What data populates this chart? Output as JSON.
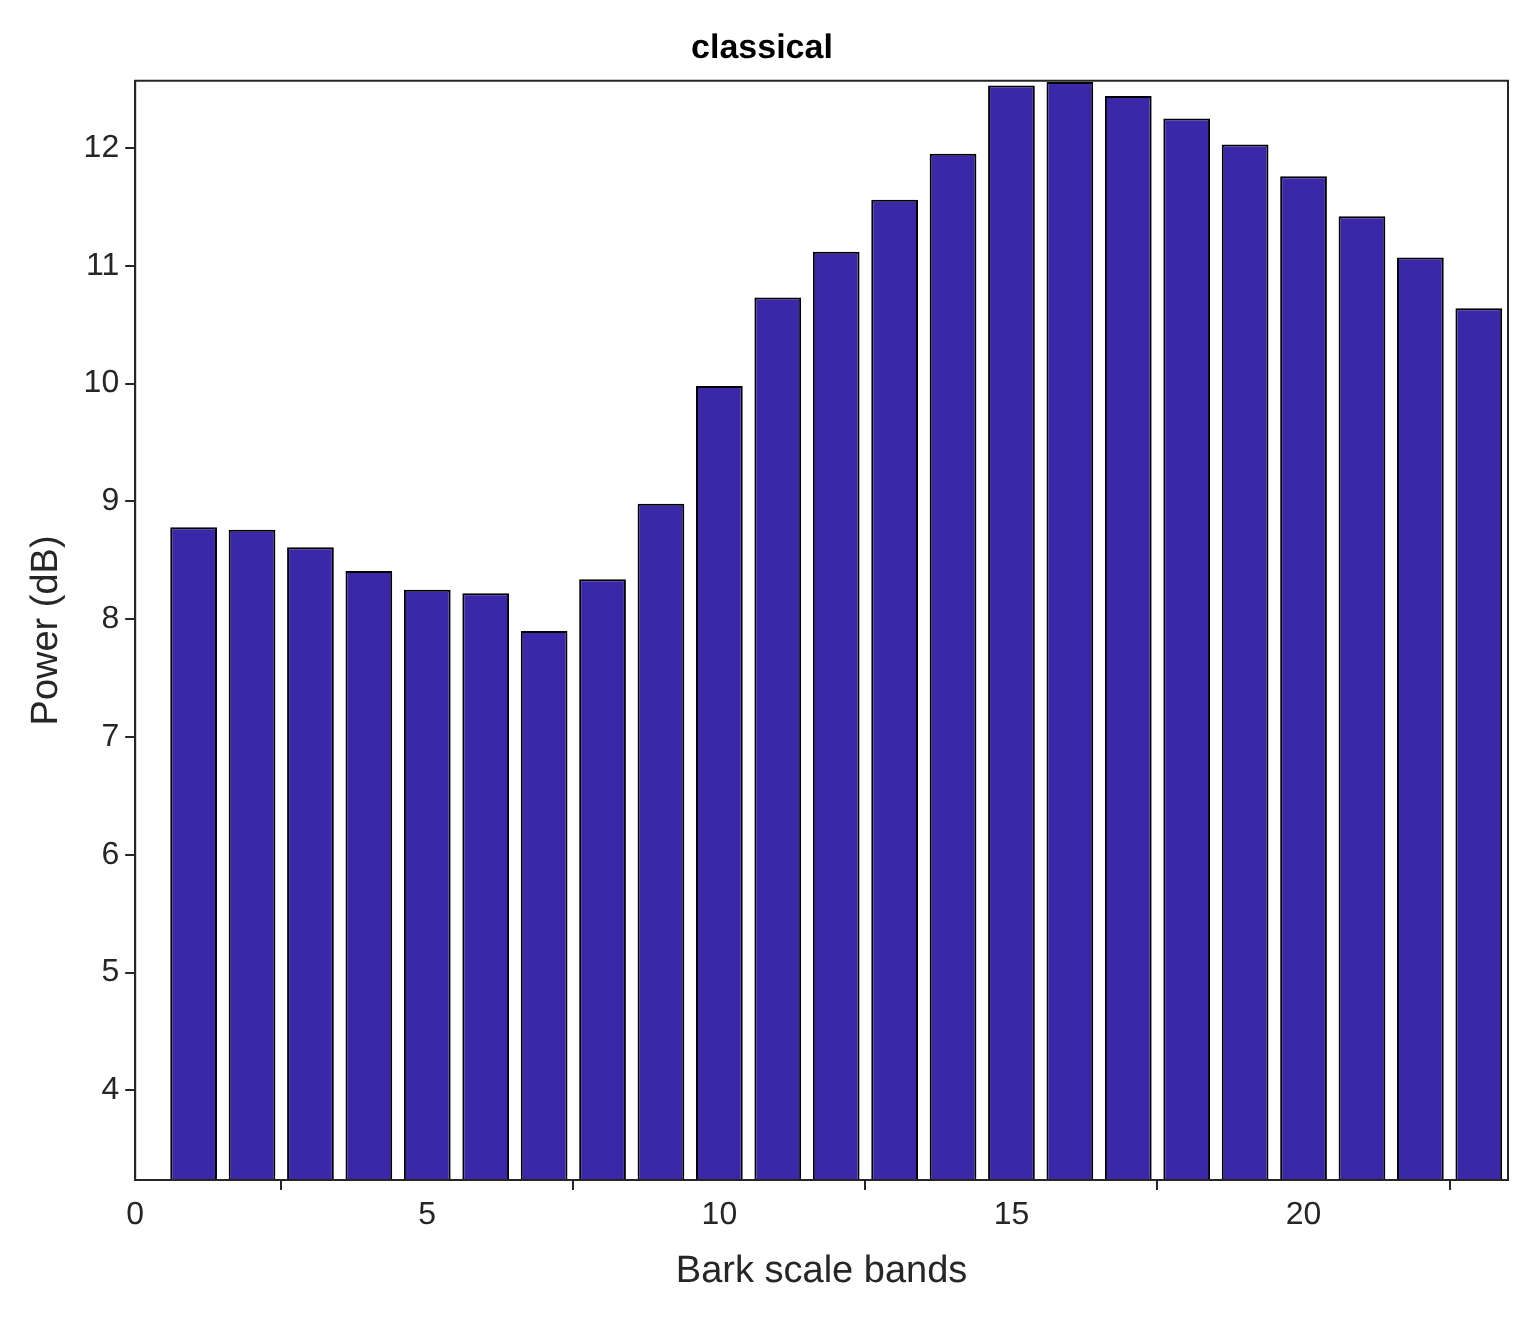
{
  "chart_data": {
    "type": "bar",
    "title": "classical",
    "xlabel": "Bark scale bands",
    "ylabel": "Power (dB)",
    "x": [
      1,
      2,
      3,
      4,
      5,
      6,
      7,
      8,
      9,
      10,
      11,
      12,
      13,
      14,
      15,
      16,
      17,
      18,
      19,
      20,
      21,
      22,
      23
    ],
    "values": [
      8.78,
      8.76,
      8.61,
      8.41,
      8.25,
      8.22,
      7.9,
      8.34,
      8.98,
      9.98,
      10.73,
      11.12,
      11.56,
      11.95,
      12.53,
      12.56,
      12.44,
      12.25,
      12.03,
      11.76,
      11.42,
      11.07,
      10.64
    ],
    "color": "#3b28a8",
    "xlim": [
      0,
      23.5
    ],
    "xticks": [
      0,
      5,
      10,
      15,
      20
    ],
    "ylim": [
      3.24,
      12.57
    ],
    "yticks": [
      4,
      5,
      6,
      7,
      8,
      9,
      10,
      11,
      12
    ],
    "grid": false
  }
}
